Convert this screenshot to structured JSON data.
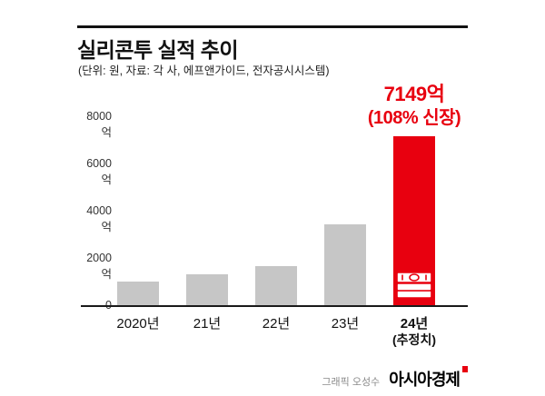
{
  "header": {
    "title": "실리콘투 실적 추이",
    "subtitle": "(단위: 원, 자료: 각 사, 에프앤가이드, 전자공시시스템)"
  },
  "annotation": {
    "line1": "7149억",
    "line2": "(108% 신장)"
  },
  "footer": {
    "credit": "그래픽 오성수",
    "brand": "아시아경제"
  },
  "colors": {
    "accent_red": "#e8000f",
    "bar_gray": "#c6c6c6"
  },
  "icons": {
    "highlight_bar_icon": "banknotes-icon",
    "brand_mark": "red-square-mark"
  },
  "chart_data": {
    "type": "bar",
    "title": "실리콘투 실적 추이",
    "subtitle": "(단위: 원, 자료: 각 사, 에프앤가이드, 전자공시시스템)",
    "categories": [
      "2020년",
      "21년",
      "22년",
      "23년",
      "24년"
    ],
    "x_sub_label": {
      "index": 4,
      "text": "(추정치)"
    },
    "values": [
      990,
      1310,
      1650,
      3430,
      7149
    ],
    "unit": "억 원",
    "ylim": [
      0,
      8000
    ],
    "yticks": [
      0,
      2000,
      4000,
      6000,
      8000
    ],
    "ytick_labels": [
      "0",
      "2000억",
      "4000억",
      "6000억",
      "8000억"
    ],
    "highlight_index": 4,
    "highlight_color": "#e8000f",
    "bar_color": "#c6c6c6",
    "annotation_text": "7149억 (108% 신장)",
    "grid": false,
    "legend": false
  }
}
